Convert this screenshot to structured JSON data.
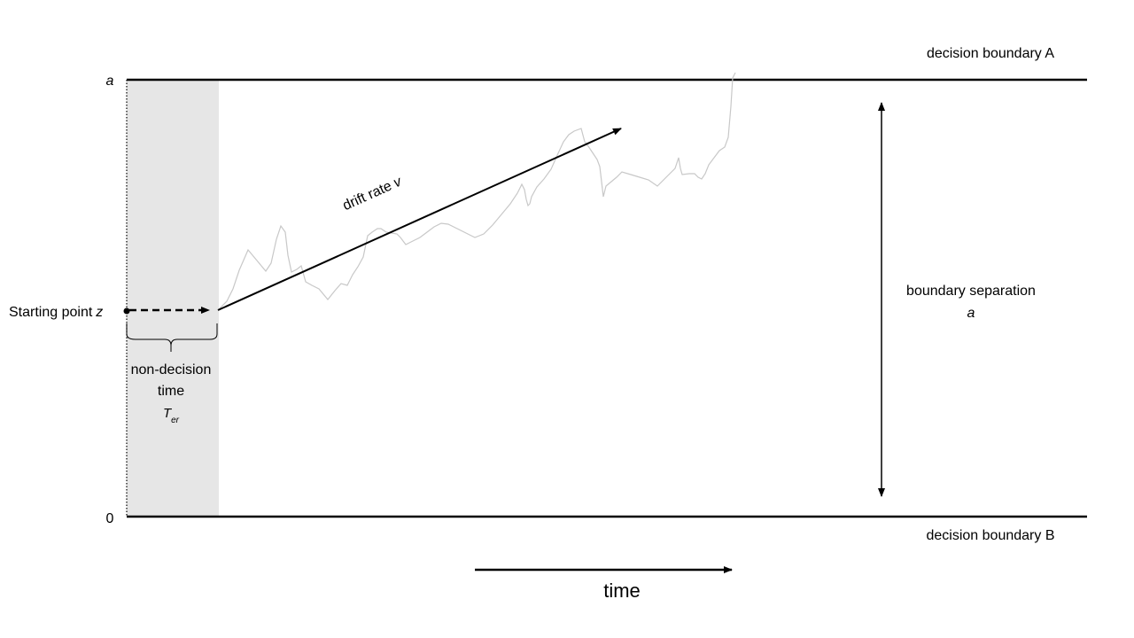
{
  "labels": {
    "axis_top": "a",
    "axis_bottom": "0",
    "boundary_a": "decision boundary A",
    "boundary_b": "decision boundary B",
    "starting_point": "Starting point",
    "starting_point_symbol": "z",
    "drift_rate": "drift rate",
    "drift_rate_symbol": "v",
    "boundary_separation": "boundary separation",
    "boundary_separation_symbol": "a",
    "non_decision_line1": "non-decision",
    "non_decision_line2": "time",
    "non_decision_symbol": "T",
    "non_decision_subscript": "er",
    "time": "time"
  },
  "colors": {
    "line": "#000000",
    "shade": "#e6e6e6",
    "path": "#c8c8c8"
  }
}
